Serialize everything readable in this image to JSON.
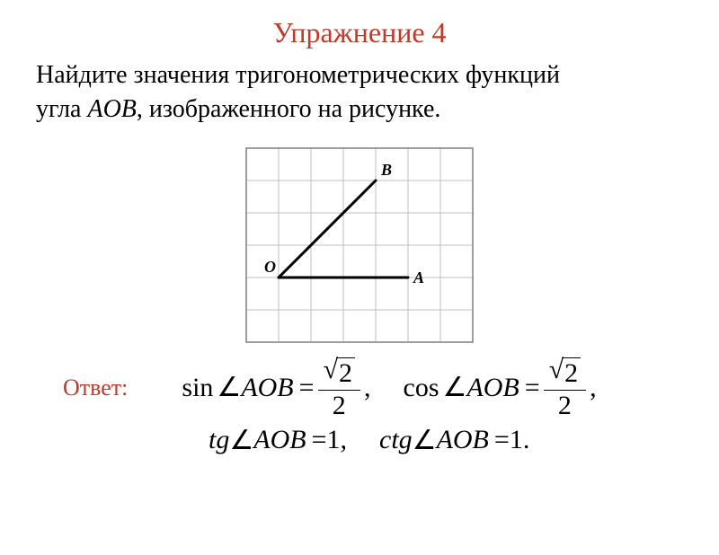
{
  "title": {
    "text": "Упражнение 4",
    "color": "#c0392b"
  },
  "problem": {
    "line1_a": "Найдите значения тригонометрических функций",
    "line2_a": "угла ",
    "angle": "AOB",
    "line2_b": ", изображенного на рисунке."
  },
  "figure": {
    "grid": {
      "cols": 7,
      "rows": 6,
      "cell": 36,
      "stroke": "#bfbfbf",
      "border": "#7f7f7f"
    },
    "O": {
      "gx": 1,
      "gy": 4,
      "label": "O"
    },
    "A": {
      "gx": 5,
      "gy": 4,
      "label": "A"
    },
    "B": {
      "gx": 4,
      "gy": 1,
      "label": "B"
    },
    "line_color": "#000000",
    "line_width": 3
  },
  "answer": {
    "label": "Ответ:",
    "label_color": "#c0392b",
    "sin_lhs": "sin",
    "cos_lhs": "cos",
    "tg_lhs": "tg",
    "ctg_lhs": "ctg",
    "angle_sym": "∠",
    "angle": "AOB",
    "eq": "=",
    "sqrt_arg": "2",
    "frac_den": "2",
    "comma": ",",
    "tg_val": "1",
    "ctg_val": "1.",
    "tg_comma": ","
  }
}
